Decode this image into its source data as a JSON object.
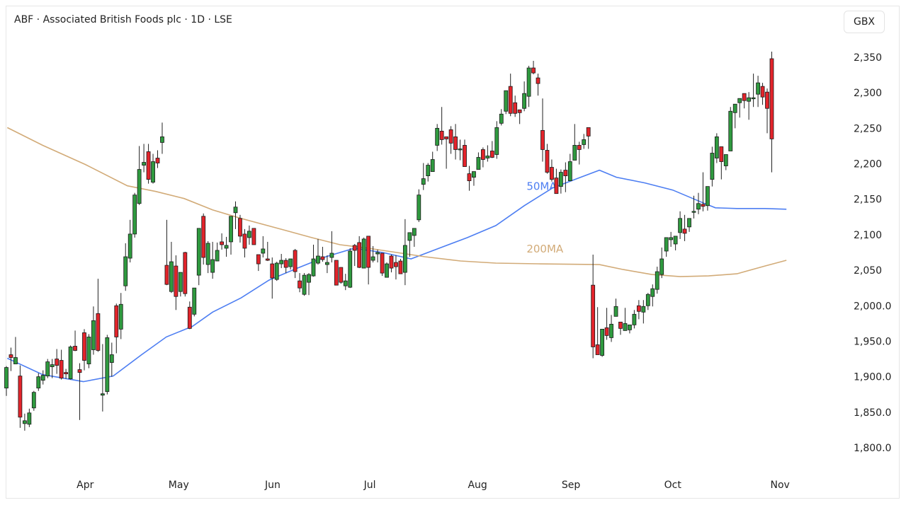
{
  "header": {
    "title": "ABF · Associated British Foods plc · 1D · LSE",
    "currency_button": "GBX"
  },
  "colors": {
    "up": "#2f9a3f",
    "down": "#e3242b",
    "ma50": "#4d7ef2",
    "ma200": "#d2ab78"
  },
  "chart_data": {
    "type": "candlestick",
    "title": "ABF · Associated British Foods plc · 1D · LSE",
    "ylabel": "GBX",
    "ylim": [
      1800,
      2350
    ],
    "y_ticks": [
      {
        "value": 2350,
        "label": "2,350"
      },
      {
        "value": 2300,
        "label": "2,300"
      },
      {
        "value": 2250,
        "label": "2,250"
      },
      {
        "value": 2200,
        "label": "2,200"
      },
      {
        "value": 2150,
        "label": "2,150"
      },
      {
        "value": 2100,
        "label": "2,100"
      },
      {
        "value": 2050,
        "label": "2,050"
      },
      {
        "value": 2000,
        "label": "2,000.0"
      },
      {
        "value": 1950,
        "label": "1,950.0"
      },
      {
        "value": 1900,
        "label": "1,900.0"
      },
      {
        "value": 1850,
        "label": "1,850.0"
      },
      {
        "value": 1800,
        "label": "1,800.0"
      }
    ],
    "x_ticks": [
      {
        "index": 17.2,
        "label": "Apr"
      },
      {
        "index": 37.6,
        "label": "May"
      },
      {
        "index": 58.1,
        "label": "Jun"
      },
      {
        "index": 79.3,
        "label": "Jul"
      },
      {
        "index": 102.8,
        "label": "Aug"
      },
      {
        "index": 123.2,
        "label": "Sep"
      },
      {
        "index": 145.4,
        "label": "Oct"
      },
      {
        "index": 168.8,
        "label": "Nov"
      }
    ],
    "ohlc_format": [
      "open",
      "high",
      "low",
      "close"
    ],
    "candles": [
      [
        1884,
        1915,
        1873,
        1913
      ],
      [
        1931,
        1941,
        1908,
        1927
      ],
      [
        1918,
        1956,
        1918,
        1927
      ],
      [
        1901,
        1916,
        1828,
        1843
      ],
      [
        1834,
        1848,
        1824,
        1838
      ],
      [
        1833,
        1855,
        1829,
        1849
      ],
      [
        1856,
        1880,
        1852,
        1878
      ],
      [
        1884,
        1905,
        1880,
        1900
      ],
      [
        1895,
        1909,
        1889,
        1902
      ],
      [
        1901,
        1925,
        1898,
        1921
      ],
      [
        1914,
        1925,
        1898,
        1917
      ],
      [
        1925,
        1939,
        1904,
        1916
      ],
      [
        1923,
        1938,
        1896,
        1898
      ],
      [
        1906,
        1911,
        1897,
        1904
      ],
      [
        1897,
        1944,
        1896,
        1942
      ],
      [
        1943,
        1965,
        1936,
        1937
      ],
      [
        1910,
        1919,
        1839,
        1906
      ],
      [
        1962,
        1967,
        1909,
        1923
      ],
      [
        1918,
        1960,
        1912,
        1956
      ],
      [
        1938,
        1999,
        1931,
        1979
      ],
      [
        1989,
        2038,
        1935,
        1937
      ],
      [
        1874,
        1946,
        1851,
        1876
      ],
      [
        1879,
        1959,
        1875,
        1955
      ],
      [
        1920,
        1948,
        1900,
        1931
      ],
      [
        2000,
        2003,
        1933,
        1956
      ],
      [
        1967,
        2018,
        1953,
        2002
      ],
      [
        2028,
        2088,
        2021,
        2069
      ],
      [
        2067,
        2121,
        2061,
        2101
      ],
      [
        2101,
        2159,
        2096,
        2156
      ],
      [
        2144,
        2225,
        2142,
        2192
      ],
      [
        2198,
        2228,
        2188,
        2202
      ],
      [
        2217,
        2228,
        2172,
        2178
      ],
      [
        2174,
        2214,
        2172,
        2203
      ],
      [
        2208,
        2219,
        2194,
        2201
      ],
      [
        2230,
        2258,
        2214,
        2238
      ],
      [
        2057,
        2121,
        2029,
        2030
      ],
      [
        2020,
        2090,
        2018,
        2062
      ],
      [
        2056,
        2071,
        1994,
        2013
      ],
      [
        2020,
        2047,
        2013,
        2047
      ],
      [
        2075,
        2076,
        2013,
        2017
      ],
      [
        1998,
        2006,
        1967,
        1968
      ],
      [
        1988,
        2025,
        1985,
        2025
      ],
      [
        2043,
        2109,
        2029,
        2109
      ],
      [
        2126,
        2130,
        2058,
        2068
      ],
      [
        2058,
        2091,
        2046,
        2088
      ],
      [
        2047,
        2090,
        2038,
        2065
      ],
      [
        2063,
        2089,
        2063,
        2078
      ],
      [
        2090,
        2102,
        2079,
        2086
      ],
      [
        2081,
        2097,
        2069,
        2085
      ],
      [
        2090,
        2126,
        2072,
        2126
      ],
      [
        2131,
        2147,
        2108,
        2139
      ],
      [
        2123,
        2128,
        2089,
        2098
      ],
      [
        2101,
        2108,
        2068,
        2081
      ],
      [
        2096,
        2113,
        2086,
        2105
      ],
      [
        2109,
        2109,
        2086,
        2086
      ],
      [
        2072,
        2072,
        2049,
        2059
      ],
      [
        2074,
        2098,
        2068,
        2080
      ],
      [
        2066,
        2090,
        2063,
        2064
      ],
      [
        2059,
        2068,
        2010,
        2039
      ],
      [
        2037,
        2062,
        2035,
        2060
      ],
      [
        2059,
        2073,
        2053,
        2064
      ],
      [
        2064,
        2067,
        2046,
        2054
      ],
      [
        2055,
        2066,
        2051,
        2066
      ],
      [
        2078,
        2080,
        2039,
        2048
      ],
      [
        2035,
        2046,
        2019,
        2025
      ],
      [
        2016,
        2046,
        2014,
        2043
      ],
      [
        2033,
        2046,
        2015,
        2044
      ],
      [
        2042,
        2086,
        2041,
        2066
      ],
      [
        2060,
        2094,
        2058,
        2070
      ],
      [
        2069,
        2083,
        2062,
        2065
      ],
      [
        2058,
        2071,
        2046,
        2061
      ],
      [
        2068,
        2105,
        2061,
        2074
      ],
      [
        2064,
        2064,
        2029,
        2029
      ],
      [
        2054,
        2054,
        2031,
        2033
      ],
      [
        2028,
        2045,
        2022,
        2035
      ],
      [
        2026,
        2081,
        2025,
        2077
      ],
      [
        2085,
        2087,
        2056,
        2078
      ],
      [
        2089,
        2098,
        2053,
        2054
      ],
      [
        2053,
        2096,
        2053,
        2094
      ],
      [
        2098,
        2098,
        2030,
        2054
      ],
      [
        2064,
        2084,
        2061,
        2069
      ],
      [
        2073,
        2079,
        2061,
        2075
      ],
      [
        2074,
        2074,
        2042,
        2046
      ],
      [
        2040,
        2061,
        2040,
        2059
      ],
      [
        2070,
        2072,
        2047,
        2053
      ],
      [
        2061,
        2071,
        2037,
        2055
      ],
      [
        2063,
        2066,
        2045,
        2045
      ],
      [
        2047,
        2122,
        2029,
        2085
      ],
      [
        2092,
        2103,
        2069,
        2103
      ],
      [
        2099,
        2109,
        2083,
        2109
      ],
      [
        2121,
        2164,
        2118,
        2156
      ],
      [
        2171,
        2201,
        2163,
        2179
      ],
      [
        2183,
        2201,
        2175,
        2198
      ],
      [
        2189,
        2217,
        2189,
        2206
      ],
      [
        2226,
        2256,
        2218,
        2250
      ],
      [
        2246,
        2280,
        2227,
        2234
      ],
      [
        2238,
        2238,
        2193,
        2235
      ],
      [
        2248,
        2253,
        2214,
        2229
      ],
      [
        2238,
        2256,
        2206,
        2220
      ],
      [
        2221,
        2234,
        2205,
        2221
      ],
      [
        2226,
        2234,
        2196,
        2196
      ],
      [
        2186,
        2197,
        2162,
        2176
      ],
      [
        2181,
        2189,
        2169,
        2189
      ],
      [
        2192,
        2216,
        2192,
        2209
      ],
      [
        2220,
        2223,
        2195,
        2206
      ],
      [
        2208,
        2226,
        2203,
        2211
      ],
      [
        2218,
        2232,
        2208,
        2209
      ],
      [
        2213,
        2260,
        2207,
        2251
      ],
      [
        2257,
        2277,
        2254,
        2270
      ],
      [
        2274,
        2303,
        2270,
        2303
      ],
      [
        2309,
        2327,
        2267,
        2271
      ],
      [
        2286,
        2296,
        2266,
        2271
      ],
      [
        2276,
        2276,
        2256,
        2272
      ],
      [
        2278,
        2316,
        2274,
        2299
      ],
      [
        2295,
        2338,
        2280,
        2335
      ],
      [
        2335,
        2345,
        2326,
        2328
      ],
      [
        2321,
        2327,
        2296,
        2313
      ],
      [
        2247,
        2292,
        2203,
        2220
      ],
      [
        2219,
        2228,
        2186,
        2188
      ],
      [
        2195,
        2206,
        2175,
        2178
      ],
      [
        2180,
        2193,
        2158,
        2158
      ],
      [
        2168,
        2192,
        2158,
        2188
      ],
      [
        2191,
        2202,
        2160,
        2183
      ],
      [
        2176,
        2214,
        2176,
        2203
      ],
      [
        2205,
        2256,
        2205,
        2226
      ],
      [
        2226,
        2231,
        2199,
        2220
      ],
      [
        2227,
        2242,
        2221,
        2234
      ],
      [
        2251,
        2251,
        2221,
        2239
      ],
      [
        2029,
        2072,
        1926,
        1942
      ],
      [
        1945,
        1998,
        1931,
        1931
      ],
      [
        1930,
        1967,
        1928,
        1967
      ],
      [
        1969,
        1997,
        1952,
        1958
      ],
      [
        1955,
        1987,
        1949,
        1974
      ],
      [
        1985,
        2010,
        1985,
        1999
      ],
      [
        1977,
        1977,
        1959,
        1968
      ],
      [
        1965,
        1997,
        1965,
        1975
      ],
      [
        1966,
        1973,
        1961,
        1973
      ],
      [
        1973,
        1994,
        1968,
        1988
      ],
      [
        2000,
        2008,
        1981,
        1992
      ],
      [
        1991,
        2008,
        1975,
        1999
      ],
      [
        2000,
        2018,
        1994,
        2016
      ],
      [
        2013,
        2030,
        1999,
        2024
      ],
      [
        2023,
        2055,
        2017,
        2048
      ],
      [
        2044,
        2082,
        2039,
        2066
      ],
      [
        2077,
        2096,
        2069,
        2096
      ],
      [
        2093,
        2104,
        2083,
        2096
      ],
      [
        2087,
        2098,
        2078,
        2098
      ],
      [
        2103,
        2133,
        2094,
        2123
      ],
      [
        2108,
        2128,
        2091,
        2102
      ],
      [
        2111,
        2123,
        2104,
        2123
      ],
      [
        2133,
        2155,
        2123,
        2133
      ],
      [
        2136,
        2159,
        2129,
        2144
      ],
      [
        2143,
        2188,
        2133,
        2140
      ],
      [
        2141,
        2168,
        2134,
        2168
      ],
      [
        2178,
        2224,
        2168,
        2215
      ],
      [
        2208,
        2243,
        2201,
        2238
      ],
      [
        2224,
        2224,
        2178,
        2203
      ],
      [
        2197,
        2213,
        2191,
        2213
      ],
      [
        2218,
        2280,
        2218,
        2274
      ],
      [
        2272,
        2284,
        2250,
        2284
      ],
      [
        2286,
        2292,
        2265,
        2292
      ],
      [
        2299,
        2299,
        2278,
        2289
      ],
      [
        2288,
        2301,
        2262,
        2293
      ],
      [
        2293,
        2327,
        2280,
        2293
      ],
      [
        2298,
        2324,
        2280,
        2314
      ],
      [
        2309,
        2314,
        2283,
        2294
      ],
      [
        2301,
        2306,
        2243,
        2278
      ],
      [
        2348,
        2358,
        2188,
        2235
      ]
    ],
    "series": [
      {
        "name": "50MA",
        "label": "50MA",
        "points": [
          [
            0.2,
            1926
          ],
          [
            7.9,
            1903
          ],
          [
            16.8,
            1893
          ],
          [
            23.3,
            1901
          ],
          [
            29.5,
            1931
          ],
          [
            34.9,
            1956
          ],
          [
            40.6,
            1971
          ],
          [
            45.0,
            1991
          ],
          [
            51.2,
            2011
          ],
          [
            57.3,
            2036
          ],
          [
            63.5,
            2053
          ],
          [
            69.7,
            2069
          ],
          [
            75.9,
            2081
          ],
          [
            82.1,
            2075
          ],
          [
            88.3,
            2066
          ],
          [
            94.4,
            2081
          ],
          [
            100.6,
            2096
          ],
          [
            106.8,
            2113
          ],
          [
            113.0,
            2141
          ],
          [
            119.2,
            2166
          ],
          [
            125.3,
            2181
          ],
          [
            129.4,
            2191
          ],
          [
            133.1,
            2181
          ],
          [
            139.3,
            2173
          ],
          [
            145.4,
            2163
          ],
          [
            151.6,
            2146
          ],
          [
            154.7,
            2138
          ],
          [
            159.4,
            2137
          ],
          [
            165.5,
            2137
          ],
          [
            170.2,
            2136
          ]
        ],
        "label_anchor": [
          113.5,
          2163
        ]
      },
      {
        "name": "200MA",
        "label": "200MA",
        "points": [
          [
            0.2,
            2251
          ],
          [
            7.9,
            2226
          ],
          [
            17.2,
            2199
          ],
          [
            26.4,
            2169
          ],
          [
            32.6,
            2161
          ],
          [
            38.8,
            2151
          ],
          [
            45.0,
            2135
          ],
          [
            51.2,
            2123
          ],
          [
            60.4,
            2107
          ],
          [
            66.6,
            2096
          ],
          [
            72.8,
            2086
          ],
          [
            79.0,
            2081
          ],
          [
            85.2,
            2075
          ],
          [
            91.3,
            2069
          ],
          [
            99.1,
            2063
          ],
          [
            106.8,
            2060
          ],
          [
            116.1,
            2059
          ],
          [
            129.4,
            2058
          ],
          [
            134.6,
            2051
          ],
          [
            140.8,
            2044
          ],
          [
            147.0,
            2041
          ],
          [
            153.2,
            2042
          ],
          [
            159.4,
            2045
          ],
          [
            165.5,
            2056
          ],
          [
            170.2,
            2064
          ]
        ],
        "label_anchor": [
          113.5,
          2075
        ]
      }
    ]
  }
}
